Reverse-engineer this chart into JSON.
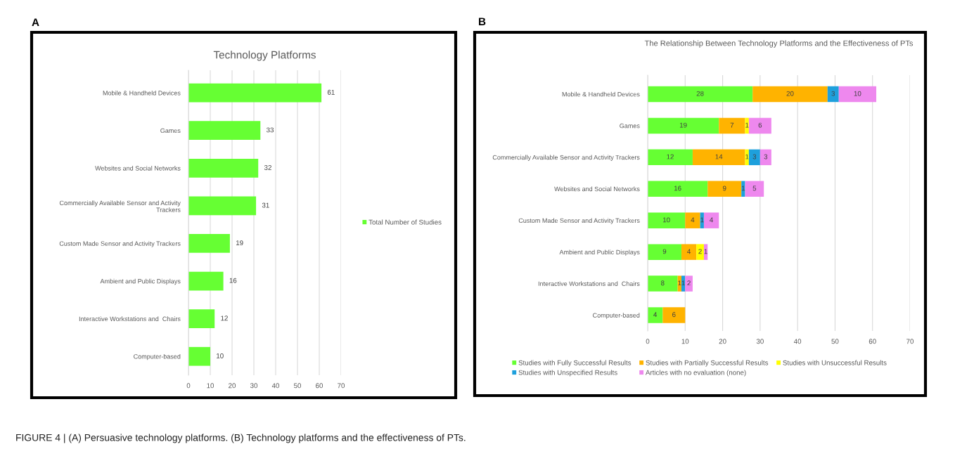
{
  "chart_data": [
    {
      "type": "bar",
      "orientation": "horizontal",
      "title": "Technology Platforms",
      "annotations": [
        "A",
        "FIGURE 4 | (A) Persuasive technology platforms. (B) Technology platforms and the effectiveness of PTs."
      ],
      "categories": [
        "Mobile & Handheld Devices",
        "Games",
        "Websites and Social Networks",
        "Commercially Available Sensor and Activity\nTrackers",
        "Custom Made Sensor and Activity Trackers",
        "Ambient and Public Displays",
        "Interactive Workstations and  Chairs",
        "Computer-based"
      ],
      "series": [
        {
          "name": "Total Number of Studies",
          "color": "#66ff33",
          "values": [
            61,
            33,
            32,
            31,
            19,
            16,
            12,
            10
          ]
        }
      ],
      "data_labels": true,
      "xlim": [
        0,
        70
      ],
      "xticks": [
        0,
        10,
        20,
        30,
        40,
        50,
        60,
        70
      ],
      "grid": "x",
      "legend": "right"
    },
    {
      "type": "bar",
      "orientation": "horizontal",
      "stacked": true,
      "title": "The Relationship Between Technology Platforms and the Effectiveness of PTs",
      "annotations": [
        "B"
      ],
      "categories": [
        "Mobile & Handheld Devices",
        "Games",
        "Commercially Available Sensor and Activity Trackers",
        "Websites and Social Networks",
        "Custom Made Sensor and Activity Trackers",
        "Ambient and Public Displays",
        "Interactive Workstations and  Chairs",
        "Computer-based"
      ],
      "series": [
        {
          "name": "Studies with Fully Successful Results",
          "color": "#66ff33",
          "values": [
            28,
            19,
            12,
            16,
            10,
            9,
            8,
            4
          ],
          "value_labels": [
            "28",
            "19",
            "12",
            "16",
            "10",
            "9",
            "8",
            "4"
          ]
        },
        {
          "name": "Studies with Partially Successful Results",
          "color": "#ffb300",
          "values": [
            20,
            7,
            14,
            9,
            4,
            4,
            1,
            6
          ],
          "value_labels": [
            "20",
            "7",
            "14",
            "9",
            "4",
            "4",
            "1",
            "6"
          ]
        },
        {
          "name": "Studies with Unsuccessful Results",
          "color": "#ffff00",
          "values": [
            null,
            1,
            1,
            null,
            null,
            2,
            null,
            null
          ],
          "value_labels": [
            null,
            "1",
            "1",
            null,
            null,
            "2",
            null,
            null
          ]
        },
        {
          "name": "Studies with Unspecified Results",
          "color": "#1ea0dc",
          "values": [
            3,
            null,
            3,
            1,
            1,
            null,
            1,
            null
          ],
          "value_labels": [
            "3",
            null,
            "3",
            "1",
            "1",
            null,
            "1",
            null
          ]
        },
        {
          "name": "Articles with no evaluation (none)",
          "color": "#ee88ee",
          "values": [
            10,
            6,
            3,
            5,
            4,
            1,
            2,
            null
          ],
          "value_labels": [
            "10",
            "6",
            "3",
            "5",
            "4",
            "1",
            "2",
            null
          ]
        }
      ],
      "xlim": [
        0,
        70
      ],
      "xticks": [
        0,
        10,
        20,
        30,
        40,
        50,
        60,
        70
      ],
      "grid": "x",
      "legend": "bottom"
    }
  ]
}
